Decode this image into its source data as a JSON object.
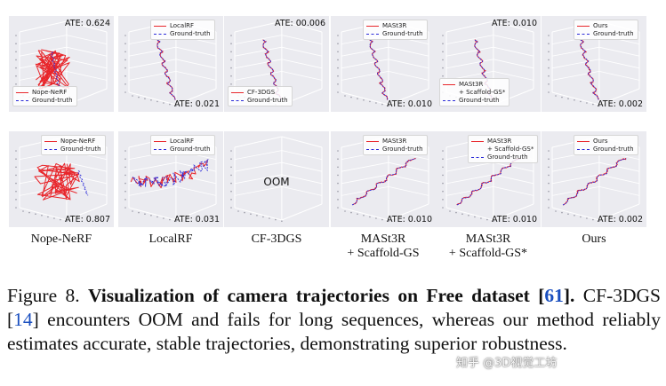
{
  "figure": {
    "rows": [
      {
        "panels": [
          {
            "ate": "ATE: 0.624",
            "ate_pos": "top-right",
            "legend": [
              "Nope-NeRF",
              "Ground-truth"
            ],
            "legend_pos": "bottom-left",
            "method": "Nope-NeRF",
            "status": "diverged"
          },
          {
            "ate": "ATE: 0.021",
            "ate_pos": "bottom-right",
            "legend": [
              "LocalRF",
              "Ground-truth"
            ],
            "legend_pos": "top-left",
            "method": "LocalRF",
            "status": "aligned"
          },
          {
            "ate": "ATE: 00.006",
            "ate_pos": "top-right",
            "legend": [
              "CF-3DGS",
              "Ground-truth"
            ],
            "legend_pos": "bottom-left",
            "method": "CF-3DGS",
            "status": "aligned"
          },
          {
            "ate": "ATE: 0.010",
            "ate_pos": "bottom-right",
            "legend": [
              "MASt3R",
              "Ground-truth"
            ],
            "legend_pos": "top-left",
            "method": "MASt3R + Scaffold-GS",
            "status": "aligned"
          },
          {
            "ate": "ATE: 0.010",
            "ate_pos": "top-right",
            "legend": [
              "MASt3R\n+ Scaffold-GS*",
              "Ground-truth"
            ],
            "legend_pos": "bottom-left",
            "method": "MASt3R + Scaffold-GS*",
            "status": "aligned"
          },
          {
            "ate": "ATE: 0.002",
            "ate_pos": "bottom-right",
            "legend": [
              "Ours",
              "Ground-truth"
            ],
            "legend_pos": "top-left",
            "method": "Ours",
            "status": "aligned"
          }
        ]
      },
      {
        "panels": [
          {
            "ate": "ATE: 0.807",
            "ate_pos": "bottom-right",
            "legend": [
              "Nope-NeRF",
              "Ground-truth"
            ],
            "legend_pos": "top-left",
            "method": "Nope-NeRF",
            "status": "diverged"
          },
          {
            "ate": "ATE: 0.031",
            "ate_pos": "bottom-right",
            "legend": [
              "LocalRF",
              "Ground-truth"
            ],
            "legend_pos": "top-left",
            "method": "LocalRF",
            "status": "noisy"
          },
          {
            "ate": "",
            "ate_pos": "bottom-right",
            "legend": [],
            "legend_pos": "top-left",
            "method": "CF-3DGS",
            "status": "oom",
            "oom_text": "OOM"
          },
          {
            "ate": "ATE: 0.010",
            "ate_pos": "bottom-right",
            "legend": [
              "MASt3R",
              "Ground-truth"
            ],
            "legend_pos": "top-left",
            "method": "MASt3R + Scaffold-GS",
            "status": "aligned"
          },
          {
            "ate": "ATE: 0.010",
            "ate_pos": "bottom-right",
            "legend": [
              "MASt3R\n+ Scaffold-GS*",
              "Ground-truth"
            ],
            "legend_pos": "top-left",
            "method": "MASt3R + Scaffold-GS*",
            "status": "aligned"
          },
          {
            "ate": "ATE: 0.002",
            "ate_pos": "bottom-right",
            "legend": [
              "Ours",
              "Ground-truth"
            ],
            "legend_pos": "top-left",
            "method": "Ours",
            "status": "aligned"
          }
        ]
      }
    ],
    "column_labels": [
      "Nope-NeRF",
      "LocalRF",
      "CF-3DGS",
      "MASt3R\n+ Scaffold-GS",
      "MASt3R\n+ Scaffold-GS*",
      "Ours"
    ],
    "colors": {
      "estimate": "#e8262b",
      "ground_truth": "#2a2ad8",
      "panel_bg": "#ebebf0"
    }
  },
  "caption": {
    "prefix": "Figure 8. ",
    "bold_lead": "Visualization of camera trajectories on Free dataset [",
    "ref1": "61",
    "bold_close": "].",
    "text1": " CF-3DGS [",
    "ref2": "14",
    "text2": "] encounters OOM and fails for long sequences, whereas our method reliably estimates accurate, stable trajectories, demonstrating superior robustness."
  },
  "watermark": "知乎 @3D视觉工坊"
}
